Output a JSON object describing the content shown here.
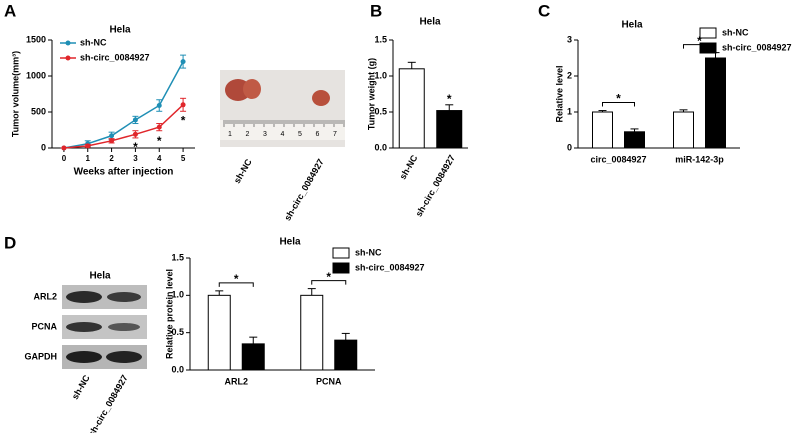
{
  "panel_labels": [
    "A",
    "B",
    "C",
    "D"
  ],
  "photo": {
    "ruler": [
      1,
      2,
      3,
      4,
      5,
      6,
      7
    ],
    "labels": [
      "sh-NC",
      "sh-circ_0084927"
    ]
  },
  "blot": {
    "title": "Hela",
    "rows": [
      "ARL2",
      "PCNA",
      "GAPDH"
    ],
    "lanes": [
      "sh-NC",
      "sh-circ_0084927"
    ]
  },
  "chart_data": [
    {
      "type": "line",
      "title": "Hela",
      "x_label": "Weeks after injection",
      "y_label": "Tumor volume(mm³)",
      "x": [
        0,
        1,
        2,
        3,
        4,
        5
      ],
      "xlim": [
        -0.5,
        5.5
      ],
      "xticks": [
        0,
        1,
        2,
        3,
        4,
        5
      ],
      "ylim": [
        0,
        1500
      ],
      "yticks": [
        0,
        500,
        1000,
        1500
      ],
      "legend": "upper left",
      "series": [
        {
          "name": "sh-NC",
          "color": "#1f8fb5",
          "values": [
            0,
            60,
            170,
            390,
            590,
            1200
          ],
          "errors": [
            0,
            40,
            50,
            50,
            80,
            90
          ]
        },
        {
          "name": "sh-circ_0084927",
          "color": "#e0262b",
          "values": [
            0,
            30,
            100,
            190,
            290,
            600
          ],
          "errors": [
            0,
            20,
            30,
            50,
            50,
            90
          ]
        }
      ],
      "annotations": [
        null,
        null,
        null,
        "*",
        "*",
        "*"
      ]
    },
    {
      "type": "bar",
      "title": "Hela",
      "y_label": "Tumor weight (g)",
      "categories": [
        "sh-NC",
        "sh-circ_0084927"
      ],
      "values": [
        1.1,
        0.52
      ],
      "errors": [
        0.09,
        0.08
      ],
      "colors": [
        "#ffffff",
        "#000000"
      ],
      "ylim": [
        0,
        1.5
      ],
      "yticks": [
        {
          "value": 0,
          "label": "0.0"
        },
        0.5,
        {
          "value": 1,
          "label": "1.0"
        },
        1.5
      ],
      "annotations": [
        null,
        "*"
      ]
    },
    {
      "type": "bar",
      "title": "Hela",
      "y_label": "Relative  level",
      "legend": "upper right",
      "categories": [
        "circ_0084927",
        "miR-142-3p"
      ],
      "series": [
        {
          "name": "sh-NC",
          "color": "#ffffff",
          "values": [
            1.0,
            1.0
          ],
          "errors": [
            0.04,
            0.06
          ]
        },
        {
          "name": "sh-circ_0084927",
          "color": "#000000",
          "values": [
            0.45,
            2.5
          ],
          "errors": [
            0.08,
            0.15
          ]
        }
      ],
      "ylim": [
        0,
        3
      ],
      "yticks": [
        0,
        1,
        2,
        3
      ],
      "annotations": [
        "*",
        "*"
      ]
    },
    {
      "type": "bar",
      "title": "Hela",
      "y_label": "Relative protein level",
      "legend": "upper right",
      "categories": [
        "ARL2",
        "PCNA"
      ],
      "series": [
        {
          "name": "sh-NC",
          "color": "#ffffff",
          "values": [
            1.0,
            1.0
          ],
          "errors": [
            0.06,
            0.09
          ]
        },
        {
          "name": "sh-circ_0084927",
          "color": "#000000",
          "values": [
            0.35,
            0.4
          ],
          "errors": [
            0.09,
            0.09
          ]
        }
      ],
      "ylim": [
        0,
        1.5
      ],
      "yticks": [
        {
          "value": 0,
          "label": "0.0"
        },
        0.5,
        {
          "value": 1,
          "label": "1.0"
        },
        1.5
      ],
      "annotations": [
        "*",
        "*"
      ]
    }
  ]
}
